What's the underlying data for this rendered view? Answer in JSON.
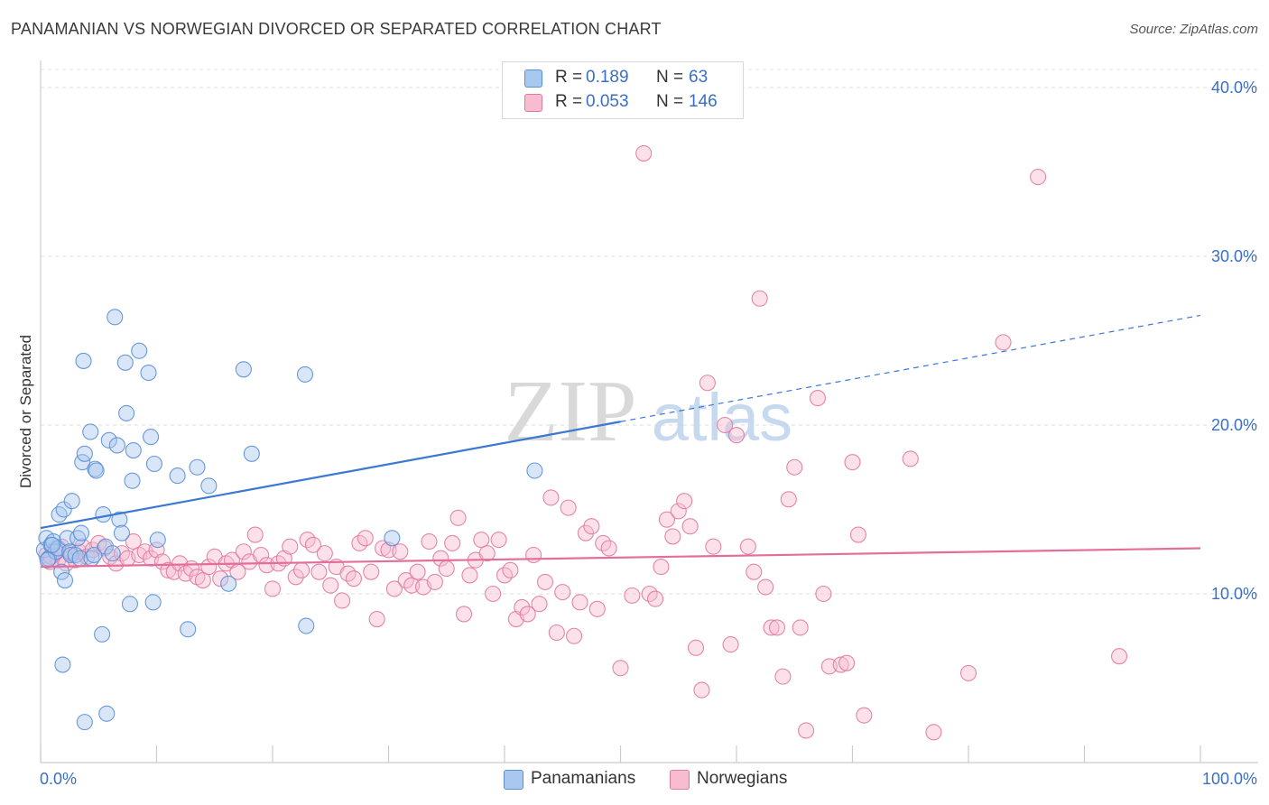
{
  "title": "PANAMANIAN VS NORWEGIAN DIVORCED OR SEPARATED CORRELATION CHART",
  "source": "Source: ZipAtlas.com",
  "watermark": {
    "zip": "ZIP",
    "atlas": "atlas"
  },
  "legend": {
    "rows": [
      {
        "r_label": "R =",
        "r_value": "0.189",
        "n_label": "N =",
        "n_value": "63",
        "color": "#a8c8f0",
        "stroke": "#5b8fd6"
      },
      {
        "r_label": "R =",
        "r_value": "0.053",
        "n_label": "N =",
        "n_value": "146",
        "color": "#f8bcd0",
        "stroke": "#e07aa0"
      }
    ]
  },
  "bottom_legend": [
    {
      "label": "Panamanians",
      "color": "#a8c8f0",
      "stroke": "#5b8fd6"
    },
    {
      "label": "Norwegians",
      "color": "#f8bcd0",
      "stroke": "#e07aa0"
    }
  ],
  "chart_data": {
    "type": "scatter",
    "title": "PANAMANIAN VS NORWEGIAN DIVORCED OR SEPARATED CORRELATION CHART",
    "xlabel": "",
    "ylabel": "Divorced or Separated",
    "xlim": [
      0,
      100
    ],
    "ylim": [
      0,
      42
    ],
    "x_ticks": [
      "0.0%",
      "100.0%"
    ],
    "y_ticks": [
      {
        "value": 10,
        "label": "10.0%"
      },
      {
        "value": 20,
        "label": "20.0%"
      },
      {
        "value": 30,
        "label": "30.0%"
      },
      {
        "value": 40,
        "label": "40.0%"
      }
    ],
    "grid": "horizontal dashed",
    "legend_position": "top-center",
    "series": [
      {
        "name": "Panamanians",
        "color": "#5b8fd6",
        "fill": "#a8c8f0",
        "trend": {
          "x0": 0,
          "y0": 13.9,
          "x1": 50,
          "y1": 20.2,
          "dashed_to_x": 100,
          "dashed_to_y": 26.5
        },
        "points": [
          [
            0.3,
            12.6
          ],
          [
            0.5,
            13.3
          ],
          [
            0.7,
            12.1
          ],
          [
            0.9,
            12.9
          ],
          [
            1.1,
            13.1
          ],
          [
            1.3,
            12.5
          ],
          [
            1.5,
            12.7
          ],
          [
            1.6,
            14.7
          ],
          [
            1.8,
            11.3
          ],
          [
            2.0,
            15.0
          ],
          [
            2.1,
            10.8
          ],
          [
            2.3,
            13.3
          ],
          [
            2.5,
            12.5
          ],
          [
            2.6,
            12.3
          ],
          [
            2.7,
            15.5
          ],
          [
            3.0,
            12.3
          ],
          [
            3.2,
            13.3
          ],
          [
            3.4,
            12.1
          ],
          [
            3.5,
            13.6
          ],
          [
            3.6,
            17.8
          ],
          [
            3.7,
            23.8
          ],
          [
            3.8,
            18.3
          ],
          [
            4.3,
            19.6
          ],
          [
            4.4,
            12.1
          ],
          [
            4.6,
            12.3
          ],
          [
            4.7,
            17.4
          ],
          [
            4.8,
            17.3
          ],
          [
            5.3,
            7.6
          ],
          [
            5.4,
            14.7
          ],
          [
            5.6,
            12.8
          ],
          [
            5.7,
            2.9
          ],
          [
            5.9,
            19.1
          ],
          [
            6.2,
            12.4
          ],
          [
            6.4,
            26.4
          ],
          [
            6.6,
            18.8
          ],
          [
            6.8,
            14.4
          ],
          [
            7.0,
            13.6
          ],
          [
            7.3,
            23.7
          ],
          [
            7.4,
            20.7
          ],
          [
            7.7,
            9.4
          ],
          [
            7.9,
            16.7
          ],
          [
            8.0,
            18.5
          ],
          [
            8.5,
            24.4
          ],
          [
            9.3,
            23.1
          ],
          [
            9.5,
            19.3
          ],
          [
            9.7,
            9.5
          ],
          [
            9.8,
            17.7
          ],
          [
            10.1,
            13.2
          ],
          [
            11.8,
            17.0
          ],
          [
            12.7,
            7.9
          ],
          [
            13.5,
            17.5
          ],
          [
            14.5,
            16.4
          ],
          [
            16.2,
            10.6
          ],
          [
            17.5,
            23.3
          ],
          [
            18.2,
            18.3
          ],
          [
            22.8,
            23.0
          ],
          [
            22.9,
            8.1
          ],
          [
            30.3,
            13.3
          ],
          [
            42.6,
            17.3
          ],
          [
            1.9,
            5.8
          ],
          [
            3.8,
            2.4
          ],
          [
            0.6,
            12.0
          ],
          [
            1.0,
            12.9
          ]
        ]
      },
      {
        "name": "Norwegians",
        "color": "#e07aa0",
        "fill": "#f8bcd0",
        "trend": {
          "x0": 0,
          "y0": 11.6,
          "x1": 100,
          "y1": 12.7
        },
        "points": [
          [
            0.5,
            12.3
          ],
          [
            0.8,
            11.9
          ],
          [
            1.2,
            12.6
          ],
          [
            1.5,
            12.0
          ],
          [
            1.8,
            12.8
          ],
          [
            2.2,
            11.8
          ],
          [
            2.5,
            12.4
          ],
          [
            3.0,
            12.0
          ],
          [
            3.3,
            12.5
          ],
          [
            3.6,
            12.8
          ],
          [
            4.0,
            12.2
          ],
          [
            4.5,
            12.6
          ],
          [
            5.0,
            13.0
          ],
          [
            5.5,
            12.7
          ],
          [
            6.0,
            12.2
          ],
          [
            6.5,
            11.8
          ],
          [
            7.0,
            12.4
          ],
          [
            7.5,
            12.1
          ],
          [
            8.0,
            13.1
          ],
          [
            8.5,
            12.3
          ],
          [
            9.0,
            12.5
          ],
          [
            9.5,
            12.1
          ],
          [
            10.0,
            12.6
          ],
          [
            10.5,
            11.9
          ],
          [
            11.0,
            11.4
          ],
          [
            11.5,
            11.3
          ],
          [
            12.0,
            11.8
          ],
          [
            12.5,
            11.2
          ],
          [
            13.0,
            11.5
          ],
          [
            13.5,
            11.0
          ],
          [
            14.0,
            10.8
          ],
          [
            14.5,
            11.6
          ],
          [
            15.0,
            12.2
          ],
          [
            15.5,
            10.9
          ],
          [
            16.0,
            11.8
          ],
          [
            16.5,
            12.0
          ],
          [
            17.0,
            11.3
          ],
          [
            17.5,
            12.5
          ],
          [
            18.0,
            11.9
          ],
          [
            18.5,
            13.5
          ],
          [
            19.0,
            12.3
          ],
          [
            19.5,
            11.7
          ],
          [
            20.0,
            10.3
          ],
          [
            20.5,
            11.8
          ],
          [
            21.0,
            12.1
          ],
          [
            21.5,
            12.8
          ],
          [
            22.0,
            11.0
          ],
          [
            22.5,
            11.4
          ],
          [
            23.0,
            13.2
          ],
          [
            23.5,
            12.9
          ],
          [
            24.0,
            11.3
          ],
          [
            24.5,
            12.4
          ],
          [
            25.0,
            10.5
          ],
          [
            25.5,
            11.6
          ],
          [
            26.0,
            9.6
          ],
          [
            26.5,
            11.2
          ],
          [
            27.0,
            10.9
          ],
          [
            27.5,
            13.0
          ],
          [
            28.0,
            13.3
          ],
          [
            28.5,
            11.3
          ],
          [
            29.0,
            8.5
          ],
          [
            29.5,
            12.7
          ],
          [
            30.0,
            12.6
          ],
          [
            30.5,
            10.3
          ],
          [
            31.0,
            12.5
          ],
          [
            31.5,
            10.8
          ],
          [
            32.0,
            10.5
          ],
          [
            32.5,
            11.3
          ],
          [
            33.0,
            10.4
          ],
          [
            33.5,
            13.1
          ],
          [
            34.0,
            10.7
          ],
          [
            34.5,
            12.1
          ],
          [
            35.0,
            11.5
          ],
          [
            35.5,
            13.0
          ],
          [
            36.0,
            14.5
          ],
          [
            36.5,
            8.8
          ],
          [
            37.0,
            11.1
          ],
          [
            37.5,
            12.0
          ],
          [
            38.0,
            13.2
          ],
          [
            38.5,
            12.4
          ],
          [
            39.0,
            10.0
          ],
          [
            39.5,
            13.2
          ],
          [
            40.0,
            11.1
          ],
          [
            40.5,
            11.4
          ],
          [
            41.0,
            8.5
          ],
          [
            41.5,
            9.2
          ],
          [
            42.0,
            8.8
          ],
          [
            42.5,
            12.3
          ],
          [
            43.0,
            9.4
          ],
          [
            43.5,
            10.7
          ],
          [
            44.0,
            15.7
          ],
          [
            44.5,
            7.7
          ],
          [
            45.0,
            10.1
          ],
          [
            45.5,
            15.1
          ],
          [
            46.0,
            7.5
          ],
          [
            46.5,
            9.5
          ],
          [
            47.0,
            13.6
          ],
          [
            47.5,
            14.0
          ],
          [
            48.0,
            9.1
          ],
          [
            48.5,
            13.0
          ],
          [
            49.0,
            12.7
          ],
          [
            50.0,
            5.6
          ],
          [
            51.0,
            9.9
          ],
          [
            52.0,
            36.1
          ],
          [
            52.5,
            10.0
          ],
          [
            53.0,
            9.7
          ],
          [
            53.5,
            11.6
          ],
          [
            54.0,
            14.4
          ],
          [
            54.5,
            13.4
          ],
          [
            55.0,
            14.9
          ],
          [
            55.5,
            15.5
          ],
          [
            56.0,
            14.0
          ],
          [
            56.5,
            6.8
          ],
          [
            57.0,
            4.3
          ],
          [
            57.5,
            22.5
          ],
          [
            58.0,
            12.8
          ],
          [
            59.0,
            20.0
          ],
          [
            59.5,
            7.0
          ],
          [
            60.0,
            19.4
          ],
          [
            61.0,
            12.8
          ],
          [
            61.5,
            11.3
          ],
          [
            62.0,
            27.5
          ],
          [
            62.5,
            10.4
          ],
          [
            63.0,
            8.0
          ],
          [
            63.5,
            8.0
          ],
          [
            64.0,
            5.1
          ],
          [
            64.5,
            15.6
          ],
          [
            65.0,
            17.5
          ],
          [
            65.5,
            8.0
          ],
          [
            66.0,
            1.9
          ],
          [
            67.0,
            21.6
          ],
          [
            67.5,
            10.0
          ],
          [
            68.0,
            5.7
          ],
          [
            69.0,
            5.8
          ],
          [
            69.5,
            5.9
          ],
          [
            70.0,
            17.8
          ],
          [
            70.5,
            13.5
          ],
          [
            71.0,
            2.8
          ],
          [
            75.0,
            18.0
          ],
          [
            77.0,
            1.8
          ],
          [
            80.0,
            5.3
          ],
          [
            83.0,
            24.9
          ],
          [
            86.0,
            34.7
          ],
          [
            93.0,
            6.3
          ],
          [
            0.9,
            12.2
          ],
          [
            1.4,
            12.5
          ]
        ]
      }
    ]
  }
}
